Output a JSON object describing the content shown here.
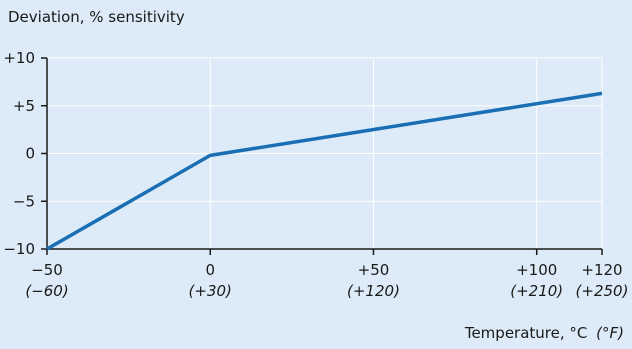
{
  "chart_data": {
    "type": "line",
    "title": "Deviation, % sensitivity",
    "xlabel": "Temperature, °C",
    "xlabel_secondary": "(°F)",
    "ylabel": "",
    "xlim": [
      -50,
      120
    ],
    "ylim": [
      -10,
      10
    ],
    "x_ticks": [
      {
        "value": -50,
        "label": "−50",
        "secondary": "(−60)"
      },
      {
        "value": 0,
        "label": "0",
        "secondary": "(+30)"
      },
      {
        "value": 50,
        "label": "+50",
        "secondary": "(+120)"
      },
      {
        "value": 100,
        "label": "+100",
        "secondary": "(+210)"
      },
      {
        "value": 120,
        "label": "+120",
        "secondary": "(+250)"
      }
    ],
    "y_ticks": [
      {
        "value": 10,
        "label": "+10"
      },
      {
        "value": 5,
        "label": "+5"
      },
      {
        "value": 0,
        "label": "0"
      },
      {
        "value": -5,
        "label": "−5"
      },
      {
        "value": -10,
        "label": "−10"
      }
    ],
    "grid": true,
    "series": [
      {
        "color": "#1a6fb4",
        "x": [
          -50,
          0,
          120
        ],
        "y": [
          -10,
          -0.2,
          6.3
        ]
      }
    ]
  }
}
